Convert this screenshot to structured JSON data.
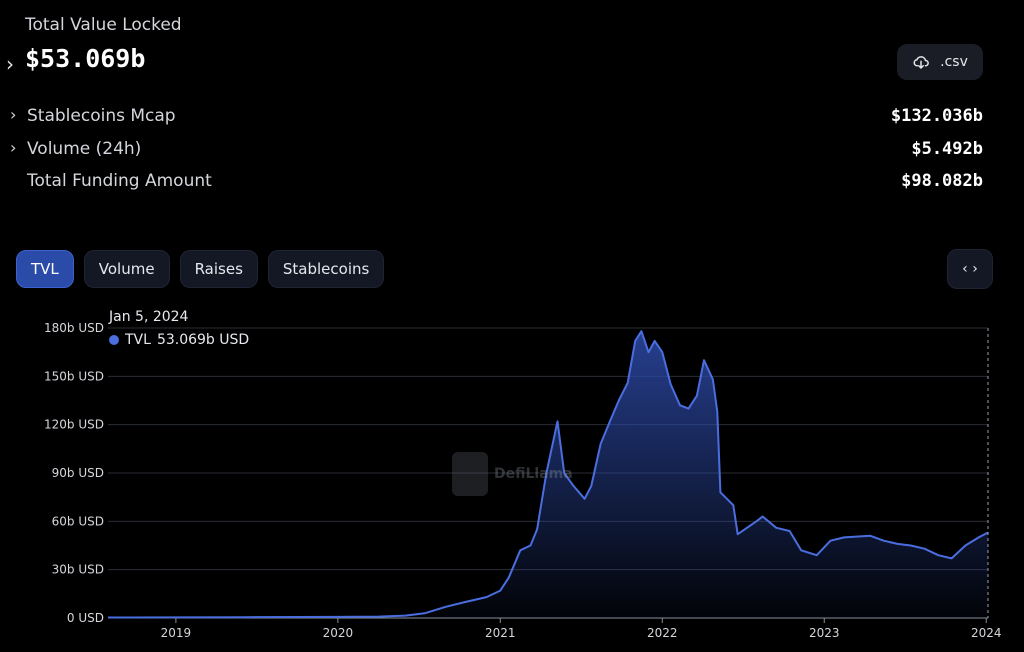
{
  "header": {
    "title": "Total Value Locked",
    "value": "$53.069b",
    "csv_label": ".csv"
  },
  "metrics": [
    {
      "label": "Stablecoins Mcap",
      "value": "$132.036b",
      "expandable": true
    },
    {
      "label": "Volume (24h)",
      "value": "$5.492b",
      "expandable": true
    },
    {
      "label": "Total Funding Amount",
      "value": "$98.082b",
      "expandable": false
    }
  ],
  "tabs": [
    {
      "label": "TVL",
      "active": true
    },
    {
      "label": "Volume",
      "active": false
    },
    {
      "label": "Raises",
      "active": false
    },
    {
      "label": "Stablecoins",
      "active": false
    }
  ],
  "tooltip": {
    "date": "Jan 5, 2024",
    "series": "TVL",
    "value": "53.069b USD"
  },
  "watermark": "DefiLlama",
  "icons": {
    "csv": "cloud-download-icon",
    "embed": "code-icon"
  },
  "colors": {
    "line": "#4a6ee0",
    "area_top": "#2d4aa8",
    "tab_active": "#2a4ba8"
  },
  "chart_data": {
    "type": "area",
    "title": "",
    "xlabel": "",
    "ylabel": "",
    "ylim": [
      0,
      180
    ],
    "xlim": [
      "2018-08-01",
      "2024-01-05"
    ],
    "y_ticks": [
      0,
      30,
      60,
      90,
      120,
      150,
      180
    ],
    "y_tick_labels": [
      "0 USD",
      "30b USD",
      "60b USD",
      "90b USD",
      "120b USD",
      "150b USD",
      "180b USD"
    ],
    "x_ticks": [
      "2019-01-01",
      "2020-01-01",
      "2021-01-01",
      "2022-01-01",
      "2023-01-01",
      "2024-01-01"
    ],
    "x_tick_labels": [
      "2019",
      "2020",
      "2021",
      "2022",
      "2023",
      "2024"
    ],
    "grid": true,
    "series": [
      {
        "name": "TVL",
        "unit": "b USD",
        "points": [
          [
            "2018-08-01",
            0.3
          ],
          [
            "2019-01-01",
            0.4
          ],
          [
            "2019-06-01",
            0.5
          ],
          [
            "2020-01-01",
            0.7
          ],
          [
            "2020-04-01",
            0.9
          ],
          [
            "2020-06-01",
            1.5
          ],
          [
            "2020-07-15",
            3
          ],
          [
            "2020-09-01",
            7
          ],
          [
            "2020-10-15",
            10
          ],
          [
            "2020-12-01",
            13
          ],
          [
            "2021-01-01",
            17
          ],
          [
            "2021-01-20",
            25
          ],
          [
            "2021-02-15",
            42
          ],
          [
            "2021-03-10",
            45
          ],
          [
            "2021-03-25",
            55
          ],
          [
            "2021-04-15",
            90
          ],
          [
            "2021-05-10",
            122
          ],
          [
            "2021-05-25",
            90
          ],
          [
            "2021-06-15",
            82
          ],
          [
            "2021-07-10",
            74
          ],
          [
            "2021-07-25",
            82
          ],
          [
            "2021-08-15",
            108
          ],
          [
            "2021-09-05",
            122
          ],
          [
            "2021-09-25",
            135
          ],
          [
            "2021-10-15",
            146
          ],
          [
            "2021-11-01",
            172
          ],
          [
            "2021-11-15",
            178
          ],
          [
            "2021-12-01",
            165
          ],
          [
            "2021-12-15",
            172
          ],
          [
            "2022-01-01",
            165
          ],
          [
            "2022-01-20",
            145
          ],
          [
            "2022-02-10",
            132
          ],
          [
            "2022-03-01",
            130
          ],
          [
            "2022-03-20",
            138
          ],
          [
            "2022-04-05",
            160
          ],
          [
            "2022-04-25",
            148
          ],
          [
            "2022-05-05",
            128
          ],
          [
            "2022-05-12",
            78
          ],
          [
            "2022-06-10",
            70
          ],
          [
            "2022-06-20",
            52
          ],
          [
            "2022-08-01",
            60
          ],
          [
            "2022-08-15",
            63
          ],
          [
            "2022-09-15",
            56
          ],
          [
            "2022-10-15",
            54
          ],
          [
            "2022-11-10",
            42
          ],
          [
            "2022-12-15",
            39
          ],
          [
            "2023-01-15",
            48
          ],
          [
            "2023-02-15",
            50
          ],
          [
            "2023-04-15",
            51
          ],
          [
            "2023-05-15",
            48
          ],
          [
            "2023-06-15",
            46
          ],
          [
            "2023-07-15",
            45
          ],
          [
            "2023-08-15",
            43
          ],
          [
            "2023-09-15",
            39
          ],
          [
            "2023-10-15",
            37
          ],
          [
            "2023-11-15",
            45
          ],
          [
            "2023-12-15",
            50
          ],
          [
            "2024-01-05",
            53.069
          ]
        ]
      }
    ]
  }
}
